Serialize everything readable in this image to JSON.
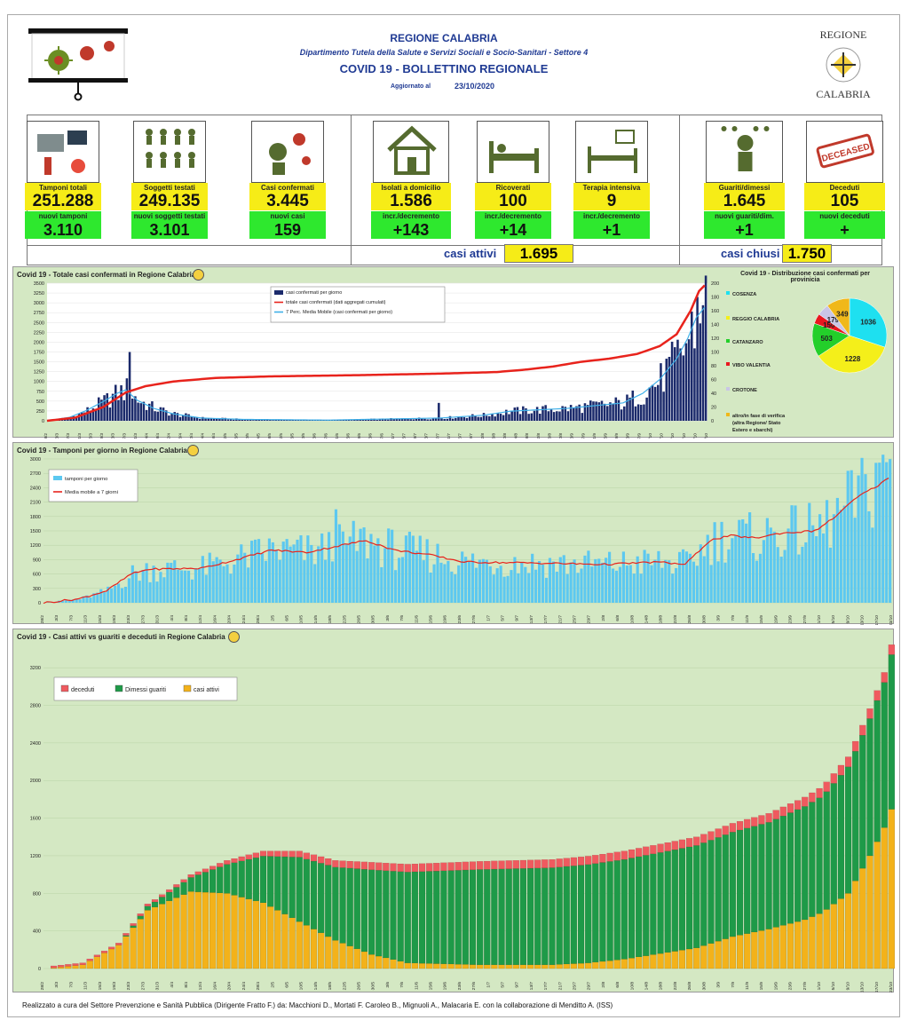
{
  "header": {
    "region": "REGIONE CALABRIA",
    "department": "Dipartimento Tutela della Salute e Servizi Sociali e Socio-Sanitari - Settore 4",
    "bulletin": "COVID 19 - BOLLETTINO REGIONALE",
    "updated_label": "Aggiornato al",
    "updated_date": "23/10/2020",
    "logo_top": "REGIONE",
    "logo_bottom": "CALABRIA"
  },
  "tiles": [
    {
      "label": "Tamponi totali",
      "value": "251.288",
      "delta_label": "nuovi tamponi",
      "delta": "3.110",
      "icon": "lab-icon"
    },
    {
      "label": "Soggetti testati",
      "value": "249.135",
      "delta_label": "nuovi soggetti testati",
      "delta": "3.101",
      "icon": "people-grid-icon"
    },
    {
      "label": "Casi confermati",
      "value": "3.445",
      "delta_label": "nuovi casi",
      "delta": "159",
      "icon": "virus-person-icon"
    },
    {
      "label": "Isolati a domicilio",
      "value": "1.586",
      "delta_label": "incr./decremento",
      "delta": "+143",
      "icon": "house-icon"
    },
    {
      "label": "Ricoverati",
      "value": "100",
      "delta_label": "incr./decremento",
      "delta": "+14",
      "icon": "hospital-bed-icon"
    },
    {
      "label": "Terapia intensiva",
      "value": "9",
      "delta_label": "incr./decremento",
      "delta": "+1",
      "icon": "icu-bed-icon"
    },
    {
      "label": "Guariti/dimessi",
      "value": "1.645",
      "delta_label": "nuovi guariti/dim.",
      "delta": "+1",
      "icon": "recovered-icon"
    },
    {
      "label": "Deceduti",
      "value": "105",
      "delta_label": "nuovi deceduti",
      "delta": "+",
      "icon": "deceased-stamp-icon"
    }
  ],
  "stamp_text": "DECEASED",
  "casi_attivi": {
    "label": "casi attivi",
    "value": "1.695"
  },
  "casi_chiusi": {
    "label": "casi chiusi",
    "value": "1.750"
  },
  "chart_data": [
    {
      "type": "bar",
      "title": "Covid 19 - Totale casi confermati in Regione Calabria",
      "ylim_left": [
        0,
        3500
      ],
      "yticks_left": [
        "3500",
        "3250",
        "3000",
        "2750",
        "2500",
        "2250",
        "2000",
        "1750",
        "1500",
        "1250",
        "1000",
        "750",
        "500",
        "250",
        "0"
      ],
      "ylim_right": [
        0,
        200
      ],
      "yticks_right": [
        "200",
        "180",
        "160",
        "140",
        "120",
        "100",
        "80",
        "60",
        "40",
        "20",
        "0"
      ],
      "legend": [
        "casi confermati per giorno",
        "totale casi confermati (dati aggregati cumulati)",
        "7 Perc. Media Mobile (casi confermati per giorno)"
      ],
      "series_colors": [
        "#1b2a6b",
        "#e8231c",
        "#3fb0e8"
      ],
      "x_range": [
        "28/2",
        "23/10"
      ],
      "cumulative_knots": [
        [
          0,
          0
        ],
        [
          10,
          80
        ],
        [
          20,
          350
        ],
        [
          28,
          720
        ],
        [
          35,
          880
        ],
        [
          45,
          1000
        ],
        [
          60,
          1090
        ],
        [
          80,
          1130
        ],
        [
          110,
          1160
        ],
        [
          140,
          1200
        ],
        [
          160,
          1240
        ],
        [
          170,
          1300
        ],
        [
          180,
          1380
        ],
        [
          190,
          1500
        ],
        [
          200,
          1580
        ],
        [
          210,
          1700
        ],
        [
          218,
          1900
        ],
        [
          224,
          2200
        ],
        [
          229,
          2800
        ],
        [
          232,
          3300
        ],
        [
          234,
          3445
        ]
      ],
      "daily_knots": [
        [
          0,
          0
        ],
        [
          8,
          5
        ],
        [
          14,
          15
        ],
        [
          20,
          28
        ],
        [
          25,
          40
        ],
        [
          28,
          45
        ],
        [
          32,
          30
        ],
        [
          38,
          18
        ],
        [
          45,
          10
        ],
        [
          55,
          4
        ],
        [
          70,
          2
        ],
        [
          100,
          1
        ],
        [
          140,
          4
        ],
        [
          155,
          8
        ],
        [
          165,
          14
        ],
        [
          175,
          16
        ],
        [
          185,
          18
        ],
        [
          195,
          22
        ],
        [
          205,
          26
        ],
        [
          212,
          40
        ],
        [
          218,
          60
        ],
        [
          224,
          90
        ],
        [
          228,
          120
        ],
        [
          231,
          150
        ],
        [
          234,
          165
        ]
      ],
      "peak_bars": [
        [
          29,
          100
        ],
        [
          139,
          26
        ],
        [
          226,
          95
        ],
        [
          231,
          180
        ],
        [
          233,
          168
        ]
      ]
    },
    {
      "type": "pie",
      "title": "Covid 19 - Distribuzione casi confermati per provinicia",
      "labels": [
        "COSENZA",
        "REGGIO CALABRIA",
        "CATANZARO",
        "VIBO VALENTIA",
        "CROTONE",
        "altro/in fase di verifica (altra Regione/ Stato Estero e sbarchi)"
      ],
      "values": [
        1036,
        1228,
        503,
        150,
        179,
        349
      ],
      "colors": [
        "#1ee0f0",
        "#f4ef1a",
        "#23cf2a",
        "#e8171f",
        "#c9c6e6",
        "#f0b81a"
      ]
    },
    {
      "type": "bar",
      "title": "Covid 19 - Tamponi per giorno in Regione Calabria",
      "ylim": [
        0,
        3000
      ],
      "yticks": [
        "3000",
        "2700",
        "2400",
        "2100",
        "1800",
        "1500",
        "1200",
        "900",
        "600",
        "300",
        "0"
      ],
      "legend": [
        "tamponi per giorno",
        "Media mobile a 7 giorni"
      ],
      "series_colors": [
        "#5cc8f0",
        "#e8231c"
      ],
      "x_range": [
        "28/2",
        "23/10"
      ],
      "avg_knots": [
        [
          0,
          0
        ],
        [
          10,
          80
        ],
        [
          18,
          250
        ],
        [
          25,
          600
        ],
        [
          30,
          700
        ],
        [
          45,
          720
        ],
        [
          55,
          900
        ],
        [
          65,
          1100
        ],
        [
          75,
          1050
        ],
        [
          85,
          1200
        ],
        [
          92,
          1300
        ],
        [
          100,
          1100
        ],
        [
          110,
          1000
        ],
        [
          120,
          850
        ],
        [
          140,
          830
        ],
        [
          160,
          800
        ],
        [
          175,
          850
        ],
        [
          183,
          800
        ],
        [
          190,
          1300
        ],
        [
          196,
          1400
        ],
        [
          203,
          1350
        ],
        [
          210,
          1450
        ],
        [
          220,
          1500
        ],
        [
          225,
          1750
        ],
        [
          232,
          2200
        ],
        [
          238,
          2450
        ],
        [
          241,
          2600
        ]
      ]
    },
    {
      "type": "area",
      "title": "Covid 19 - Casi attivi vs guariti e deceduti in Regione Calabria",
      "ylim": [
        0,
        3400
      ],
      "yticks": [
        "3200",
        "2800",
        "2400",
        "2000",
        "1600",
        "1200",
        "800",
        "400",
        "0"
      ],
      "legend": [
        "deceduti",
        "Dimessi guariti",
        "casi attivi"
      ],
      "series_colors": [
        "#ef5a5f",
        "#1e9a48",
        "#f3b21a"
      ],
      "x_range": [
        "28/2",
        "23/10"
      ],
      "active_knots": [
        [
          0,
          0
        ],
        [
          10,
          40
        ],
        [
          20,
          250
        ],
        [
          28,
          620
        ],
        [
          40,
          820
        ],
        [
          50,
          800
        ],
        [
          60,
          700
        ],
        [
          70,
          500
        ],
        [
          80,
          300
        ],
        [
          90,
          150
        ],
        [
          100,
          60
        ],
        [
          120,
          40
        ],
        [
          140,
          40
        ],
        [
          150,
          60
        ],
        [
          160,
          100
        ],
        [
          170,
          160
        ],
        [
          180,
          220
        ],
        [
          190,
          340
        ],
        [
          200,
          420
        ],
        [
          210,
          520
        ],
        [
          215,
          600
        ],
        [
          222,
          800
        ],
        [
          228,
          1200
        ],
        [
          232,
          1500
        ],
        [
          234,
          1695
        ]
      ],
      "closed_knots": [
        [
          0,
          0
        ],
        [
          10,
          5
        ],
        [
          20,
          20
        ],
        [
          30,
          80
        ],
        [
          40,
          180
        ],
        [
          50,
          350
        ],
        [
          60,
          550
        ],
        [
          70,
          750
        ],
        [
          80,
          850
        ],
        [
          90,
          980
        ],
        [
          100,
          1050
        ],
        [
          120,
          1100
        ],
        [
          140,
          1120
        ],
        [
          160,
          1150
        ],
        [
          180,
          1180
        ],
        [
          200,
          1230
        ],
        [
          215,
          1340
        ],
        [
          225,
          1500
        ],
        [
          232,
          1650
        ],
        [
          234,
          1750
        ]
      ],
      "deceased_final": 105
    }
  ],
  "footer": "Realizzato a cura del Settore Prevenzione e Sanità Pubblica (Dirigente Fratto F.) da:  Macchioni D., Mortati F. Caroleo B., Mignuoli A., Malacaria E. con la collaborazione di Menditto A. (ISS)"
}
